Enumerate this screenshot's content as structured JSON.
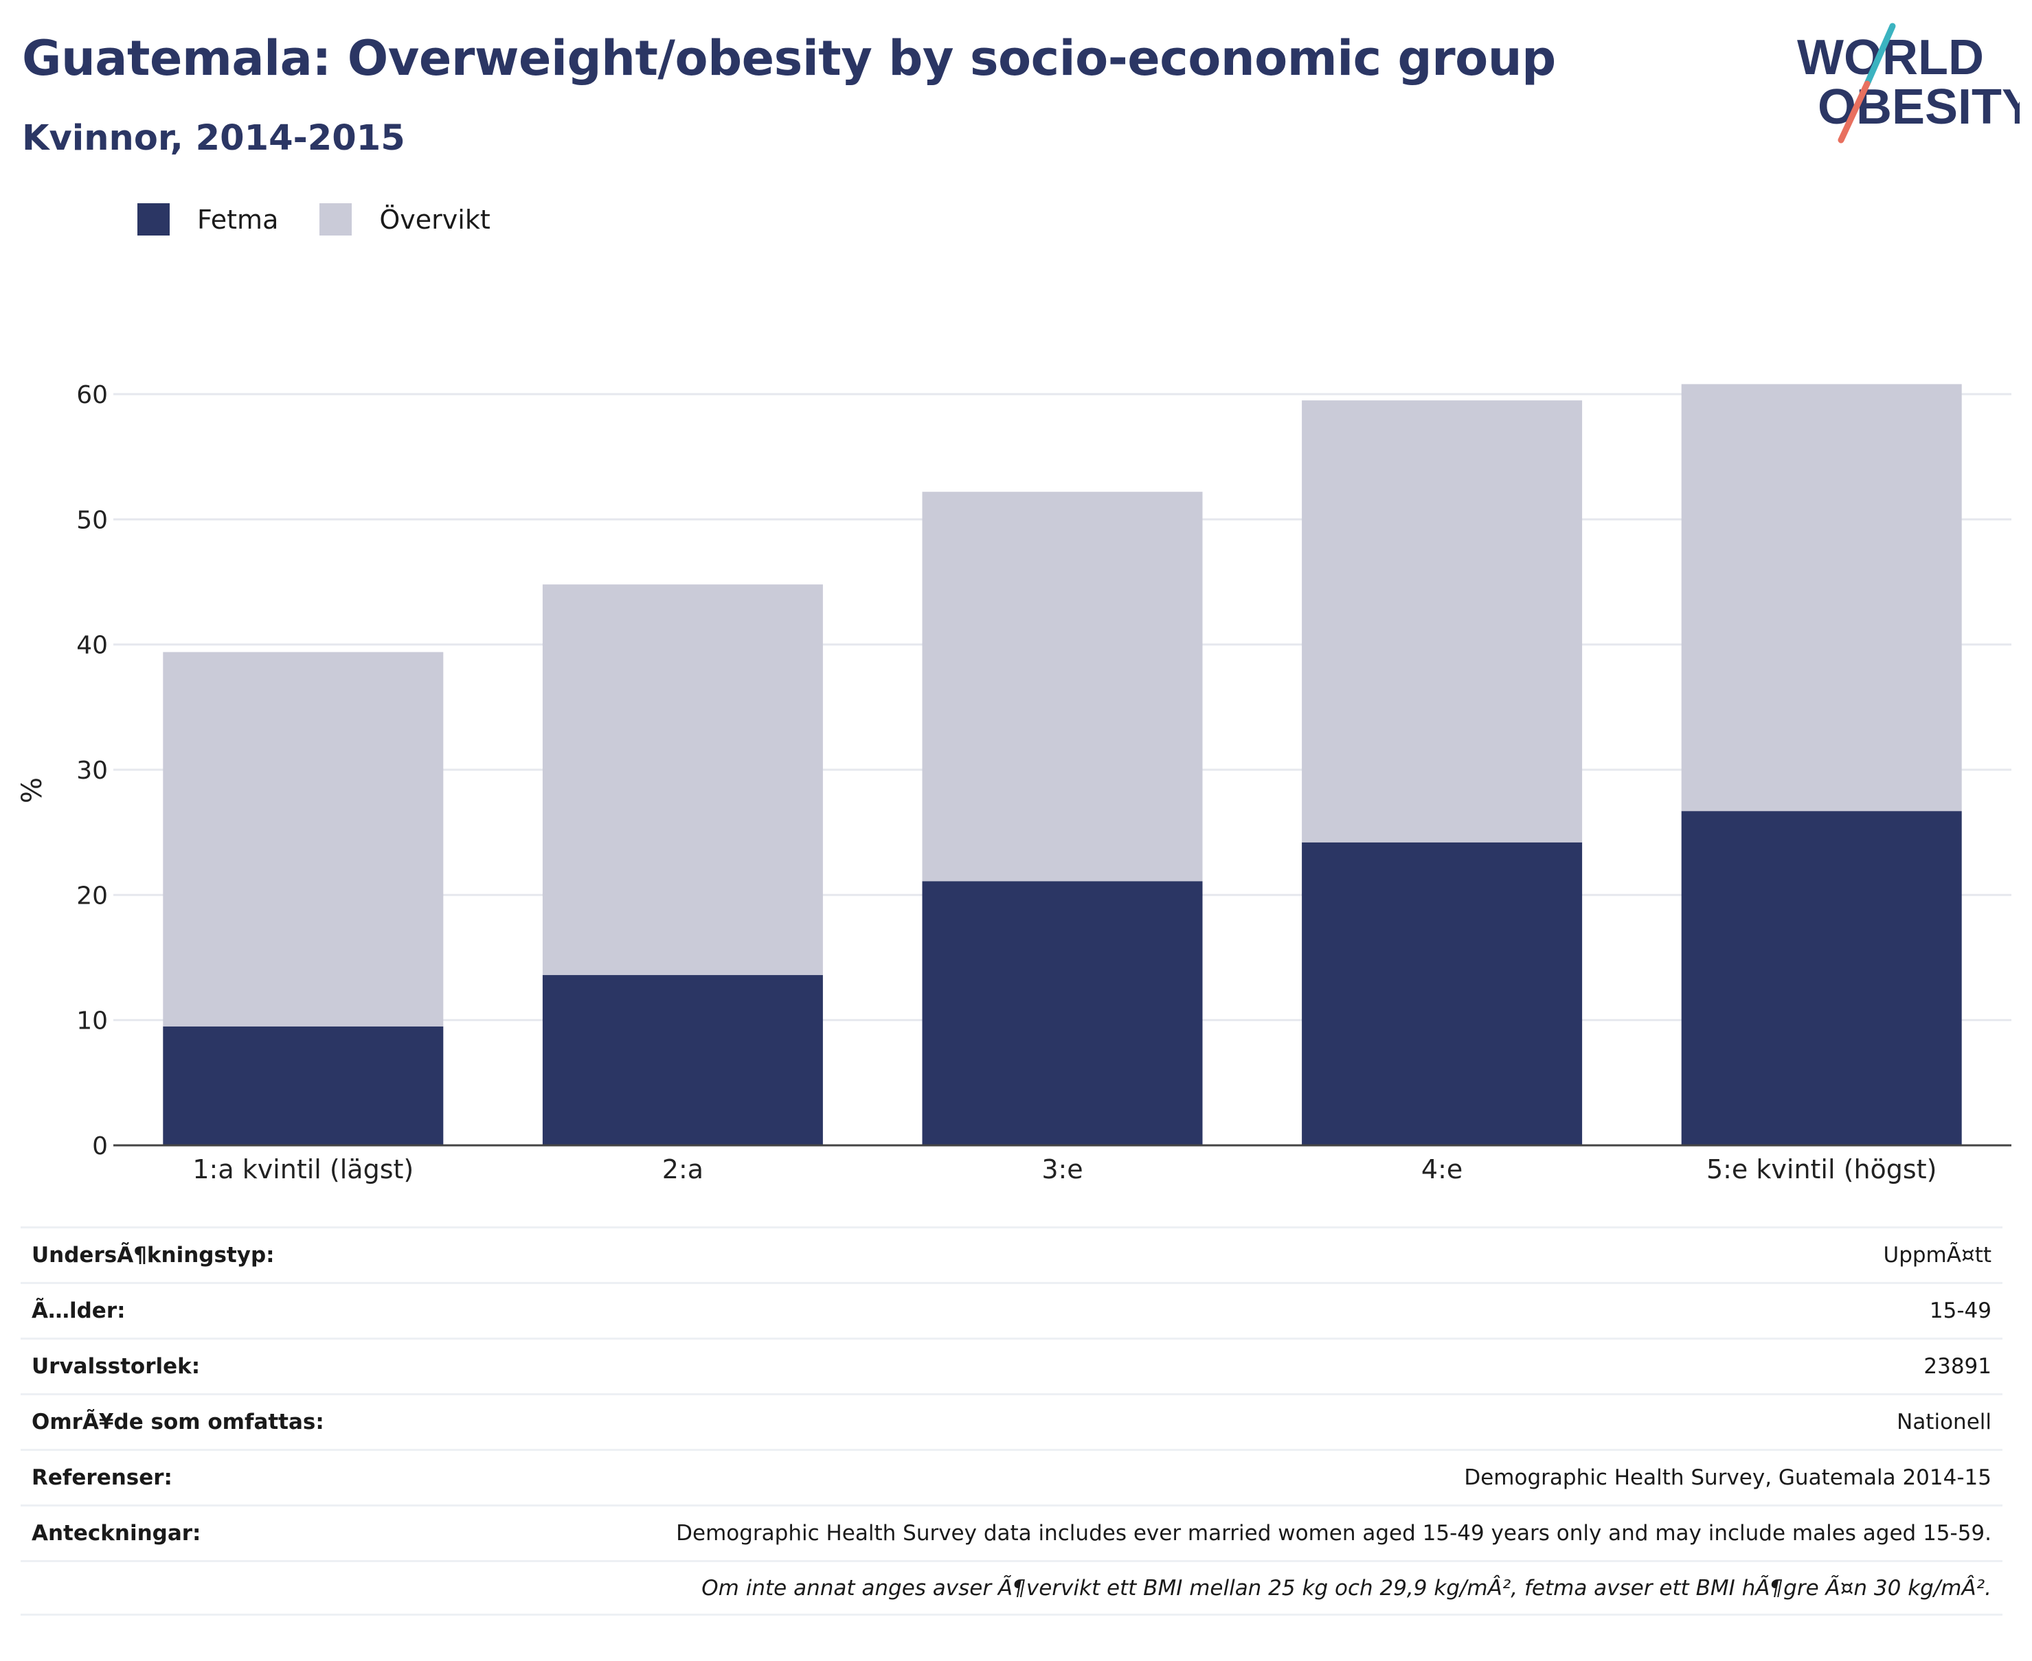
{
  "header": {
    "title": "Guatemala: Overweight/obesity by socio-economic group",
    "subtitle": "Kvinnor, 2014-2015",
    "logo": {
      "line1": "WORLD",
      "line2": "OBESITY"
    }
  },
  "colors": {
    "obesity": "#2b3664",
    "overweight": "#cacbd8",
    "grid": "#e6e8ee",
    "axis": "#444444",
    "brand": "#2b3664",
    "logo_teal": "#3bb3c0",
    "logo_coral": "#e8705f"
  },
  "chart_data": {
    "type": "bar",
    "stacked": true,
    "categories": [
      "1:a kvintil (lägst)",
      "2:a",
      "3:e",
      "4:e",
      "5:e kvintil (högst)"
    ],
    "series": [
      {
        "name": "Fetma",
        "values": [
          9.5,
          13.6,
          21.1,
          24.2,
          26.7
        ]
      },
      {
        "name": "Övervikt",
        "values": [
          29.9,
          31.2,
          31.1,
          35.3,
          34.1
        ]
      }
    ],
    "totals": [
      39.4,
      44.8,
      52.2,
      59.5,
      60.8
    ],
    "ylabel": "%",
    "ylim": [
      0,
      60
    ],
    "yticks": [
      "0",
      "10",
      "20",
      "30",
      "40",
      "50",
      "60"
    ],
    "grid": true,
    "legend": "top-left"
  },
  "info": [
    {
      "key": "UndersÃ¶kningstyp:",
      "value": "UppmÃ¤tt"
    },
    {
      "key": "Ã…lder:",
      "value": "15-49"
    },
    {
      "key": "Urvalsstorlek:",
      "value": "23891"
    },
    {
      "key": "OmrÃ¥de som omfattas:",
      "value": "Nationell"
    },
    {
      "key": "Referenser:",
      "value": "Demographic Health Survey, Guatemala 2014-15"
    },
    {
      "key": "Anteckningar:",
      "value": "Demographic Health Survey data includes ever married women aged 15-49 years only and may include males aged 15-59."
    },
    {
      "key": "",
      "value": "Om inte annat anges avser Ã¶vervikt ett BMI mellan 25 kg och 29,9 kg/mÂ², fetma avser ett BMI hÃ¶gre Ã¤n 30 kg/mÂ².",
      "italic": true
    }
  ]
}
